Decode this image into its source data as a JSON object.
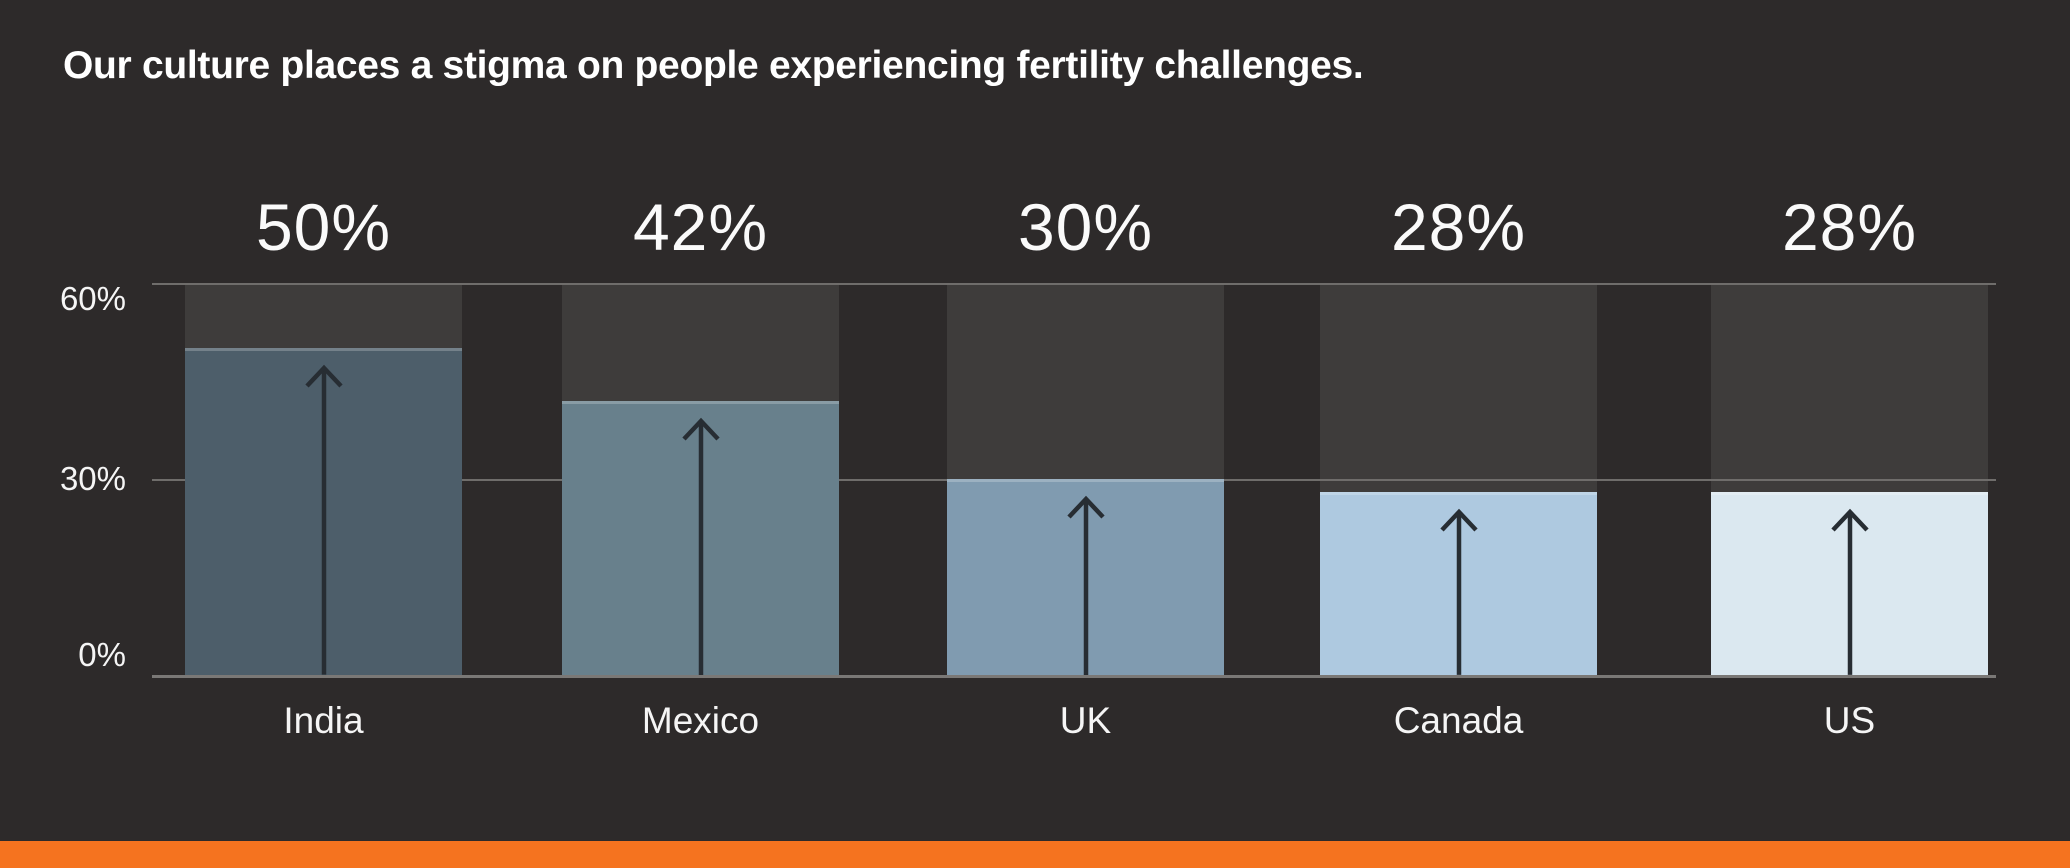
{
  "title": "Our culture places a stigma on people experiencing fertility challenges.",
  "chart_data": {
    "type": "bar",
    "title": "Our culture places a stigma on people experiencing fertility challenges.",
    "categories": [
      "India",
      "Mexico",
      "UK",
      "Canada",
      "US"
    ],
    "values": [
      50,
      42,
      30,
      28,
      28
    ],
    "value_labels": [
      "50%",
      "42%",
      "30%",
      "28%",
      "28%"
    ],
    "xlabel": "",
    "ylabel": "",
    "ylim": [
      0,
      60
    ],
    "yticks": [
      {
        "value": 0,
        "label": "0%"
      },
      {
        "value": 30,
        "label": "30%"
      },
      {
        "value": 60,
        "label": "60%"
      }
    ],
    "grid": "horizontal",
    "legend": "none",
    "bar_colors": [
      "#4d5e6a",
      "#68808c",
      "#809bb0",
      "#aec9e0",
      "#dbe8f0"
    ],
    "annotation": "up-arrow inside each bar"
  },
  "colors": {
    "background": "#2d2a2a",
    "track": "#3e3c3b",
    "gridline": "#6f6d6b",
    "text": "#ffffff",
    "arrow": "#272d33",
    "accent_bar": "#f5731f"
  }
}
